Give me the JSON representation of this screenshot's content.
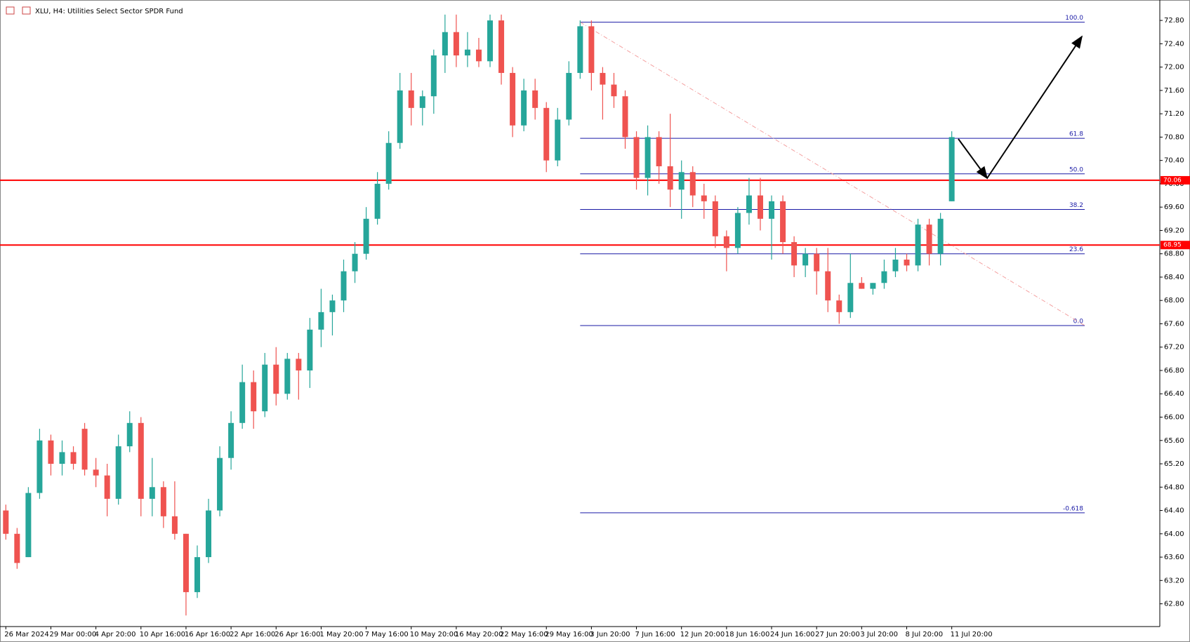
{
  "chart_data": {
    "type": "candlestick",
    "title": "XLU, H4:  Utilities Select Sector SPDR Fund",
    "up_color": "#26a69a",
    "down_color": "#ef5350",
    "grid": false,
    "categories": [
      "26 Mar 2024",
      null,
      null,
      null,
      "29 Mar 00:00",
      null,
      null,
      null,
      "4 Apr 20:00",
      null,
      null,
      null,
      "10 Apr 16:00",
      null,
      null,
      null,
      "16 Apr 16:00",
      null,
      null,
      null,
      "22 Apr 16:00",
      null,
      null,
      null,
      "26 Apr 16:00",
      null,
      null,
      null,
      "1 May 20:00",
      null,
      null,
      null,
      "7 May 16:00",
      null,
      null,
      null,
      "10 May 20:00",
      null,
      null,
      null,
      "16 May 20:00",
      null,
      null,
      null,
      "22 May 16:00",
      null,
      null,
      null,
      "29 May 16:00",
      null,
      null,
      null,
      "3 Jun 20:00",
      null,
      null,
      null,
      "7 Jun 16:00",
      null,
      null,
      null,
      "12 Jun 20:00",
      null,
      null,
      null,
      "18 Jun 16:00",
      null,
      null,
      null,
      "24 Jun 16:00",
      null,
      null,
      null,
      "27 Jun 20:00",
      null,
      null,
      null,
      "3 Jul 20:00",
      null,
      null,
      null,
      "8 Jul 20:00",
      null,
      null,
      null,
      "11 Jul 20:00"
    ],
    "open": [
      64.4,
      64.0,
      63.6,
      64.7,
      65.6,
      65.2,
      65.4,
      65.8,
      65.1,
      65.0,
      64.6,
      65.5,
      65.9,
      64.6,
      64.8,
      64.3,
      64.0,
      63.0,
      63.6,
      64.4,
      65.3,
      65.9,
      66.6,
      66.1,
      66.9,
      66.4,
      67.0,
      66.8,
      67.5,
      67.8,
      68.0,
      68.5,
      68.8,
      69.4,
      70.0,
      70.7,
      71.6,
      71.3,
      71.5,
      72.2,
      72.6,
      72.2,
      72.3,
      72.1,
      72.8,
      71.9,
      71.0,
      71.6,
      71.3,
      70.4,
      71.1,
      71.9,
      72.7,
      71.9,
      71.7,
      71.5,
      70.8,
      70.1,
      70.8,
      70.3,
      69.9,
      70.2,
      69.8,
      69.7,
      69.1,
      68.9,
      69.5,
      69.8,
      69.4,
      69.7,
      69.0,
      68.6,
      68.8,
      68.5,
      68.0,
      67.8,
      68.3,
      68.2,
      68.3,
      68.5,
      68.7,
      68.6,
      69.3,
      68.8,
      69.7
    ],
    "high": [
      64.5,
      64.1,
      64.8,
      65.8,
      65.7,
      65.6,
      65.5,
      65.9,
      65.3,
      65.2,
      65.7,
      66.1,
      66.0,
      65.3,
      64.9,
      64.9,
      64.0,
      63.8,
      64.6,
      65.5,
      66.1,
      66.9,
      66.8,
      67.1,
      67.2,
      67.1,
      67.1,
      67.7,
      68.2,
      68.1,
      68.7,
      69.0,
      69.6,
      70.2,
      70.9,
      71.9,
      71.9,
      71.6,
      72.3,
      72.9,
      72.9,
      72.6,
      72.5,
      72.9,
      72.9,
      72.0,
      71.8,
      71.8,
      71.4,
      71.3,
      72.1,
      72.8,
      72.8,
      72.0,
      71.9,
      71.6,
      70.9,
      71.0,
      70.9,
      71.2,
      70.4,
      70.3,
      70.0,
      69.8,
      69.2,
      69.6,
      70.1,
      70.1,
      69.8,
      69.8,
      69.1,
      68.9,
      68.9,
      68.9,
      68.1,
      68.8,
      68.4,
      68.3,
      68.7,
      68.9,
      68.8,
      69.4,
      69.4,
      69.5,
      70.9
    ],
    "low": [
      63.9,
      63.4,
      63.6,
      64.6,
      65.0,
      65.0,
      65.1,
      65.0,
      64.8,
      64.3,
      64.5,
      65.4,
      64.3,
      64.3,
      64.1,
      63.9,
      62.6,
      62.9,
      63.5,
      64.3,
      65.1,
      65.8,
      65.8,
      66.0,
      66.2,
      66.3,
      66.3,
      66.5,
      67.2,
      67.4,
      67.8,
      68.3,
      68.7,
      69.3,
      69.9,
      70.6,
      71.0,
      71.0,
      71.2,
      71.9,
      72.0,
      72.0,
      72.0,
      72.0,
      71.7,
      70.8,
      70.9,
      71.1,
      70.2,
      70.3,
      71.0,
      71.8,
      71.6,
      71.1,
      71.3,
      70.6,
      69.9,
      69.8,
      70.0,
      69.6,
      69.4,
      69.6,
      69.4,
      68.9,
      68.5,
      68.8,
      69.3,
      69.2,
      68.7,
      68.8,
      68.4,
      68.4,
      68.1,
      67.8,
      67.6,
      67.7,
      68.2,
      68.1,
      68.2,
      68.4,
      68.5,
      68.5,
      68.6,
      68.6,
      69.7
    ],
    "close": [
      64.0,
      63.5,
      64.7,
      65.6,
      65.2,
      65.4,
      65.2,
      65.1,
      65.0,
      64.6,
      65.5,
      65.9,
      64.6,
      64.8,
      64.3,
      64.0,
      63.0,
      63.6,
      64.4,
      65.3,
      65.9,
      66.6,
      66.1,
      66.9,
      66.4,
      67.0,
      66.8,
      67.5,
      67.8,
      68.0,
      68.5,
      68.8,
      69.4,
      70.0,
      70.7,
      71.6,
      71.3,
      71.5,
      72.2,
      72.6,
      72.2,
      72.3,
      72.1,
      72.8,
      71.9,
      71.0,
      71.6,
      71.3,
      70.4,
      71.1,
      71.9,
      72.7,
      71.9,
      71.7,
      71.5,
      70.8,
      70.1,
      70.8,
      70.3,
      69.9,
      70.2,
      69.8,
      69.7,
      69.1,
      68.9,
      69.5,
      69.8,
      69.4,
      69.7,
      69.0,
      68.6,
      68.8,
      68.5,
      68.0,
      67.8,
      68.3,
      68.2,
      68.3,
      68.5,
      68.7,
      68.6,
      69.3,
      68.8,
      69.4,
      70.8
    ],
    "ylim": [
      62.41,
      73.09
    ],
    "yticks": [
      {
        "value": 62.8,
        "label": "62.80"
      },
      {
        "value": 63.2,
        "label": "63.20"
      },
      {
        "value": 63.6,
        "label": "63.60"
      },
      {
        "value": 64.0,
        "label": "64.00"
      },
      {
        "value": 64.4,
        "label": "64.40"
      },
      {
        "value": 64.8,
        "label": "64.80"
      },
      {
        "value": 65.2,
        "label": "65.20"
      },
      {
        "value": 65.6,
        "label": "65.60"
      },
      {
        "value": 66.0,
        "label": "66.00"
      },
      {
        "value": 66.4,
        "label": "66.40"
      },
      {
        "value": 66.8,
        "label": "66.80"
      },
      {
        "value": 67.2,
        "label": "67.20"
      },
      {
        "value": 67.6,
        "label": "67.60"
      },
      {
        "value": 68.0,
        "label": "68.00"
      },
      {
        "value": 68.4,
        "label": "68.40"
      },
      {
        "value": 68.8,
        "label": "68.80"
      },
      {
        "value": 69.2,
        "label": "69.20"
      },
      {
        "value": 69.6,
        "label": "69.60"
      },
      {
        "value": 70.0,
        "label": "70.00"
      },
      {
        "value": 70.4,
        "label": "70.40"
      },
      {
        "value": 70.8,
        "label": "70.80"
      },
      {
        "value": 71.2,
        "label": "71.20"
      },
      {
        "value": 71.6,
        "label": "71.60"
      },
      {
        "value": 72.0,
        "label": "72.00"
      },
      {
        "value": 72.4,
        "label": "72.40"
      },
      {
        "value": 72.8,
        "label": "72.80"
      }
    ],
    "horizontal_lines": [
      {
        "value": 70.06,
        "color": "#ff0000"
      },
      {
        "value": 68.95,
        "color": "#ff0000"
      }
    ],
    "fib_color": "#1a1aa6",
    "fib_levels": [
      {
        "label": "100.0",
        "value": 72.77
      },
      {
        "label": "61.8",
        "value": 70.78
      },
      {
        "label": "50.0",
        "value": 70.17
      },
      {
        "label": "38.2",
        "value": 69.56
      },
      {
        "label": "23.6",
        "value": 68.8
      },
      {
        "label": "0.0",
        "value": 67.57
      },
      {
        "label": "-0.618",
        "value": 64.36
      }
    ]
  }
}
